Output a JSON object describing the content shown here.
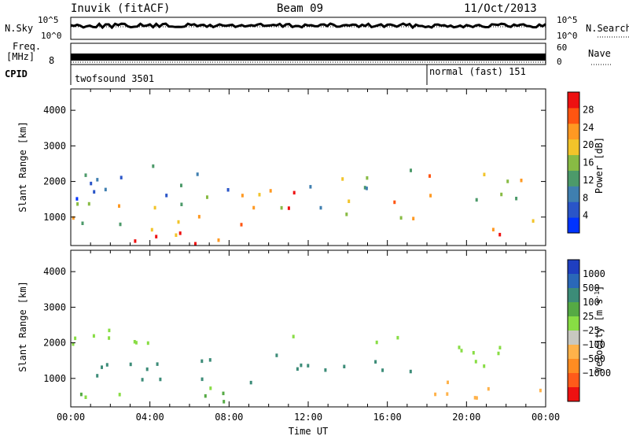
{
  "header": {
    "title": "Inuvik (fitACF)",
    "beam": "Beam 09",
    "date": "11/Oct/2013"
  },
  "top_panels": {
    "nsky_label": "N.Sky",
    "nsearch_label": "N.Search",
    "nsky_ticks": [
      "10^5",
      "10^0"
    ],
    "nsearch_ticks": [
      "10^5",
      "10^0"
    ],
    "freq_label_1": "Freq.",
    "freq_label_2": "[MHz]",
    "freq_ticks": [
      "8"
    ],
    "nave_label": "Nave",
    "nave_ticks": [
      "60",
      "0"
    ],
    "cpid_label": "CPID",
    "cpid_1": "twofsound 3501",
    "cpid_2": "normal (fast) 151",
    "mode_switch_hour": 18.0
  },
  "chart_data": [
    {
      "type": "heatmap",
      "title": "",
      "xlabel": "Time UT",
      "ylabel": "Slant Range [km]",
      "xlim": [
        0,
        24
      ],
      "ylim": [
        200,
        4600
      ],
      "x_ticks": [
        "00:00",
        "04:00",
        "08:00",
        "12:00",
        "16:00",
        "20:00",
        "00:00"
      ],
      "y_ticks": [
        1000,
        2000,
        3000,
        4000
      ],
      "colorbar": {
        "label": "Power [dB]",
        "ticks": [
          4,
          8,
          12,
          16,
          20,
          24,
          28
        ],
        "range": [
          0,
          32
        ],
        "colors": [
          "#0033ff",
          "#2a55c8",
          "#3f7fb0",
          "#4c9a6a",
          "#88bb44",
          "#f2c42a",
          "#ff9922",
          "#ff5511",
          "#ee1111"
        ]
      },
      "bands": [
        {
          "t": [
            0.0,
            9.0
          ],
          "r": [
            250,
            700
          ],
          "value": 28
        },
        {
          "t": [
            0.0,
            5.5
          ],
          "r": [
            700,
            1500
          ],
          "value": 18
        },
        {
          "t": [
            0.0,
            8.0
          ],
          "r": [
            1500,
            2500
          ],
          "value": 9
        },
        {
          "t": [
            5.0,
            11.5
          ],
          "r": [
            800,
            1800
          ],
          "value": 22
        },
        {
          "t": [
            12.0,
            17.5
          ],
          "r": [
            1000,
            1600
          ],
          "value": 18
        },
        {
          "t": [
            12.0,
            17.5
          ],
          "r": [
            1800,
            2400
          ],
          "value": 12
        },
        {
          "t": [
            18.0,
            24.0
          ],
          "r": [
            1500,
            2300
          ],
          "value": 18
        },
        {
          "t": [
            21.0,
            24.0
          ],
          "r": [
            500,
            1000
          ],
          "value": 27
        }
      ]
    },
    {
      "type": "heatmap",
      "title": "",
      "xlabel": "Time UT",
      "ylabel": "Slant Range [km]",
      "xlim": [
        0,
        24
      ],
      "ylim": [
        200,
        4600
      ],
      "x_ticks": [
        "00:00",
        "04:00",
        "08:00",
        "12:00",
        "16:00",
        "20:00",
        "00:00"
      ],
      "y_ticks": [
        1000,
        2000,
        3000,
        4000
      ],
      "colorbar": {
        "label": "Velocity [m s",
        "label_superscript": "-1",
        "label_close": "]",
        "ticks": [
          "1000",
          "500",
          "100",
          "25",
          "−25",
          "−100",
          "−500",
          "−1000"
        ],
        "colors": [
          "#1f3fc0",
          "#2a68b8",
          "#3c8c78",
          "#55aa44",
          "#88dd44",
          "#c8c8c0",
          "#ffb24a",
          "#ff8c22",
          "#ff5a1a",
          "#ee1111"
        ]
      },
      "bands": [
        {
          "t": [
            0.0,
            12.0
          ],
          "r": [
            900,
            1700
          ],
          "value": 200
        },
        {
          "t": [
            0.0,
            8.0
          ],
          "r": [
            300,
            800
          ],
          "value": 30
        },
        {
          "t": [
            0.0,
            17.0
          ],
          "r": [
            2000,
            2400
          ],
          "value": 0
        },
        {
          "t": [
            12.0,
            17.5
          ],
          "r": [
            1100,
            1600
          ],
          "value": 300
        },
        {
          "t": [
            18.0,
            24.0
          ],
          "r": [
            1300,
            2000
          ],
          "value": 0
        },
        {
          "t": [
            18.0,
            24.0
          ],
          "r": [
            500,
            1200
          ],
          "value": -300
        }
      ]
    }
  ]
}
